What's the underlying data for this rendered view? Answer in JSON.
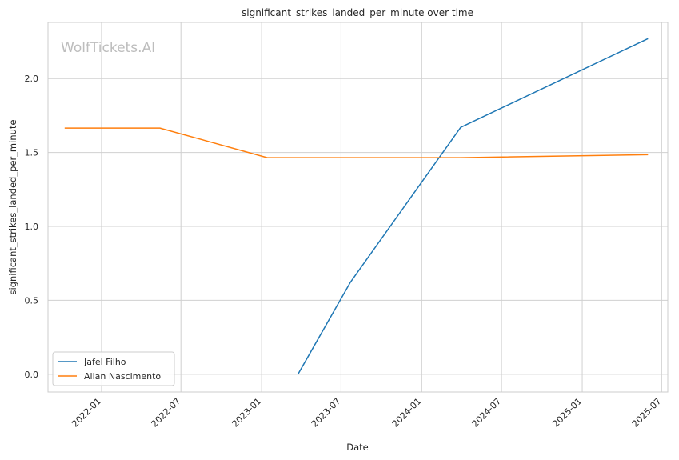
{
  "watermark": "WolfTickets.AI",
  "chart_data": {
    "type": "line",
    "title": "significant_strikes_landed_per_minute over time",
    "xlabel": "Date",
    "ylabel": "significant_strikes_landed_per_minute",
    "x_ticks": [
      "2022-01",
      "2022-07",
      "2023-01",
      "2023-07",
      "2024-01",
      "2024-07",
      "2025-01",
      "2025-07"
    ],
    "y_ticks": [
      "0.0",
      "0.5",
      "1.0",
      "1.5",
      "2.0"
    ],
    "xlim": [
      "2021-09-01",
      "2025-07-15"
    ],
    "ylim": [
      -0.12,
      2.38
    ],
    "grid": true,
    "legend_position": "lower-left",
    "series": [
      {
        "name": "Jafel Filho",
        "color": "#1f77b4",
        "points": [
          {
            "x": "2023-03-25",
            "y": 0.0
          },
          {
            "x": "2023-07-22",
            "y": 0.62
          },
          {
            "x": "2024-03-30",
            "y": 1.67
          },
          {
            "x": "2025-05-31",
            "y": 2.27
          }
        ]
      },
      {
        "name": "Allan Nascimento",
        "color": "#ff7f0e",
        "points": [
          {
            "x": "2021-10-09",
            "y": 1.665
          },
          {
            "x": "2022-05-14",
            "y": 1.665
          },
          {
            "x": "2023-01-14",
            "y": 1.465
          },
          {
            "x": "2024-03-30",
            "y": 1.465
          },
          {
            "x": "2025-05-31",
            "y": 1.485
          }
        ]
      }
    ]
  }
}
